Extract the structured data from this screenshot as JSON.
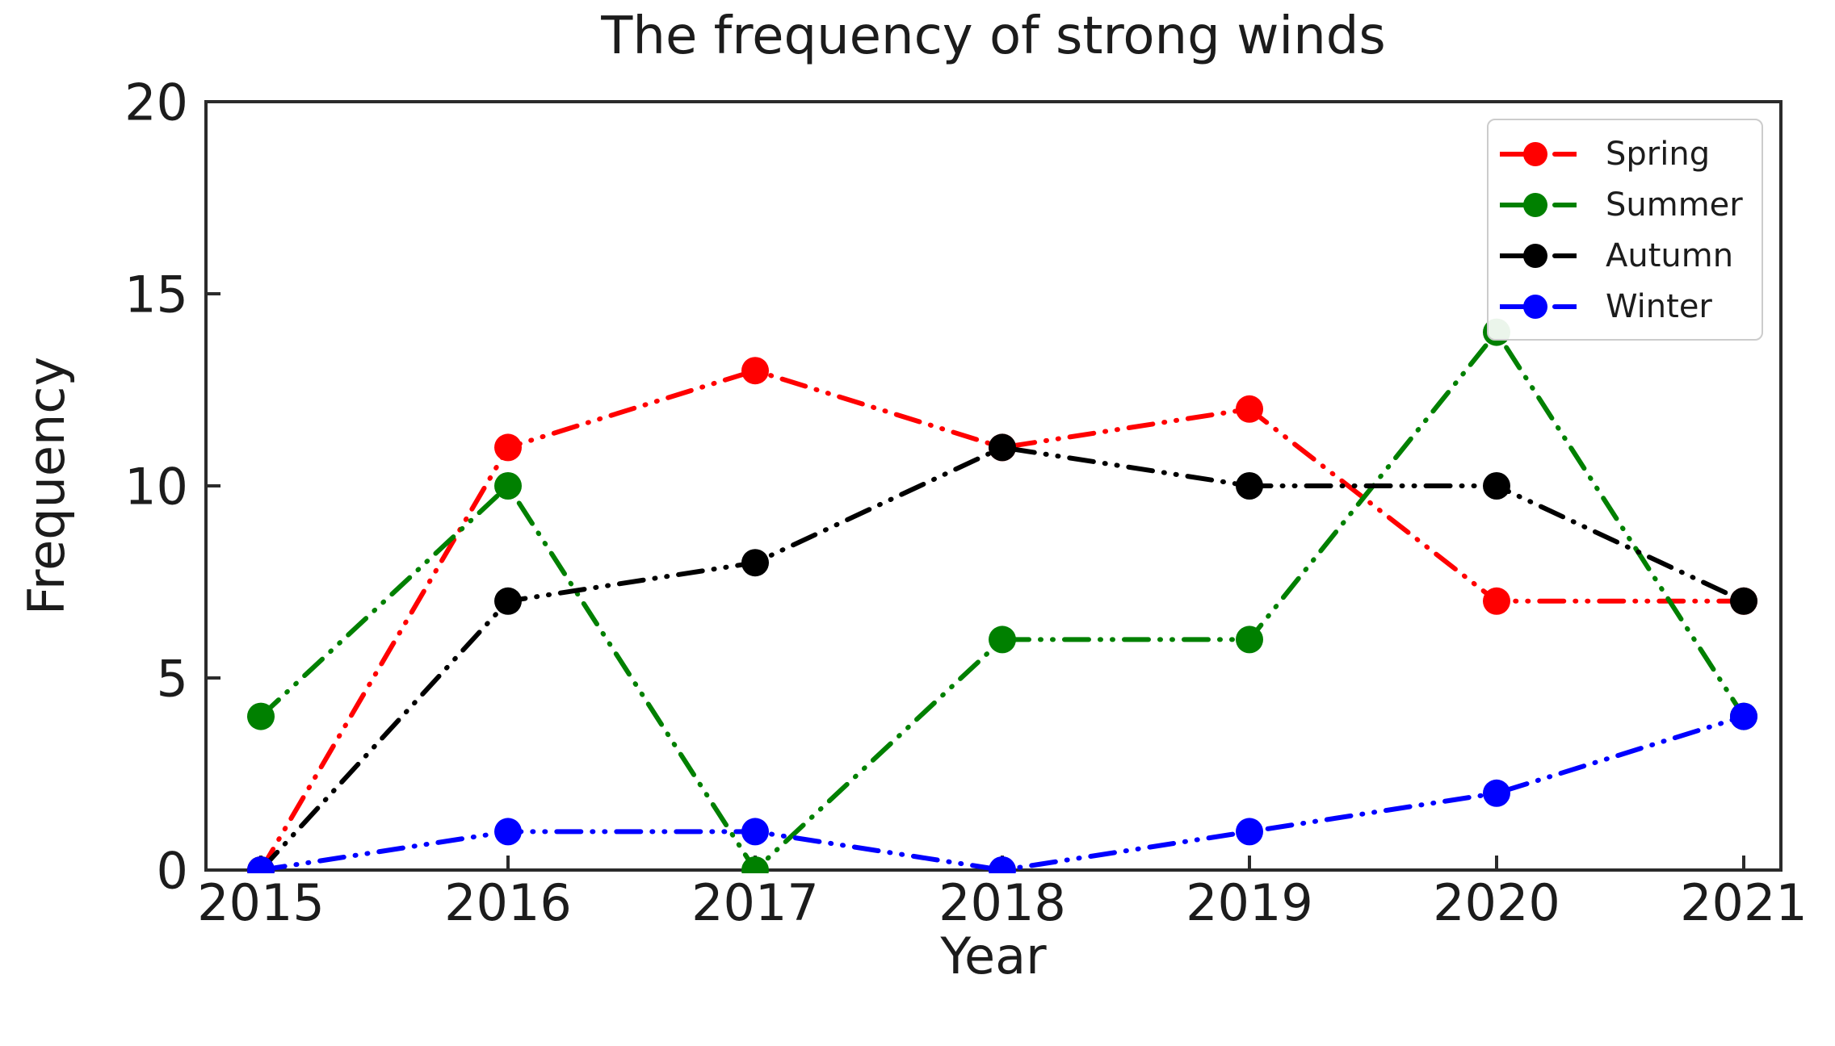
{
  "chart_data": {
    "type": "line",
    "title": "The frequency of strong winds",
    "xlabel": "Year",
    "ylabel": "Frequency",
    "x": [
      2015,
      2016,
      2017,
      2018,
      2019,
      2020,
      2021
    ],
    "x_tick_labels": [
      "2015",
      "2016",
      "2017",
      "2018",
      "2019",
      "2020",
      "2021"
    ],
    "y_ticks": [
      0,
      5,
      10,
      15,
      20
    ],
    "y_tick_labels": [
      "0",
      "5",
      "10",
      "15",
      "20"
    ],
    "ylim": [
      0,
      20
    ],
    "xlim": [
      2014.8,
      2021.2
    ],
    "grid": false,
    "line_style": "dash-dot",
    "marker": "circle",
    "legend_position": "upper right",
    "text_color": "#1c1c1c",
    "spine_color": "#2b2b2b",
    "legend_border_color": "#cccccc",
    "series": [
      {
        "name": "Spring",
        "color": "#ff0000",
        "values": [
          0,
          11,
          13,
          11,
          12,
          7,
          7
        ]
      },
      {
        "name": "Summer",
        "color": "#008000",
        "values": [
          4,
          10,
          0,
          6,
          6,
          14,
          4
        ]
      },
      {
        "name": "Autumn",
        "color": "#000000",
        "values": [
          0,
          7,
          8,
          11,
          10,
          10,
          7
        ]
      },
      {
        "name": "Winter",
        "color": "#0000ff",
        "values": [
          0,
          1,
          1,
          0,
          1,
          2,
          4
        ]
      }
    ]
  }
}
